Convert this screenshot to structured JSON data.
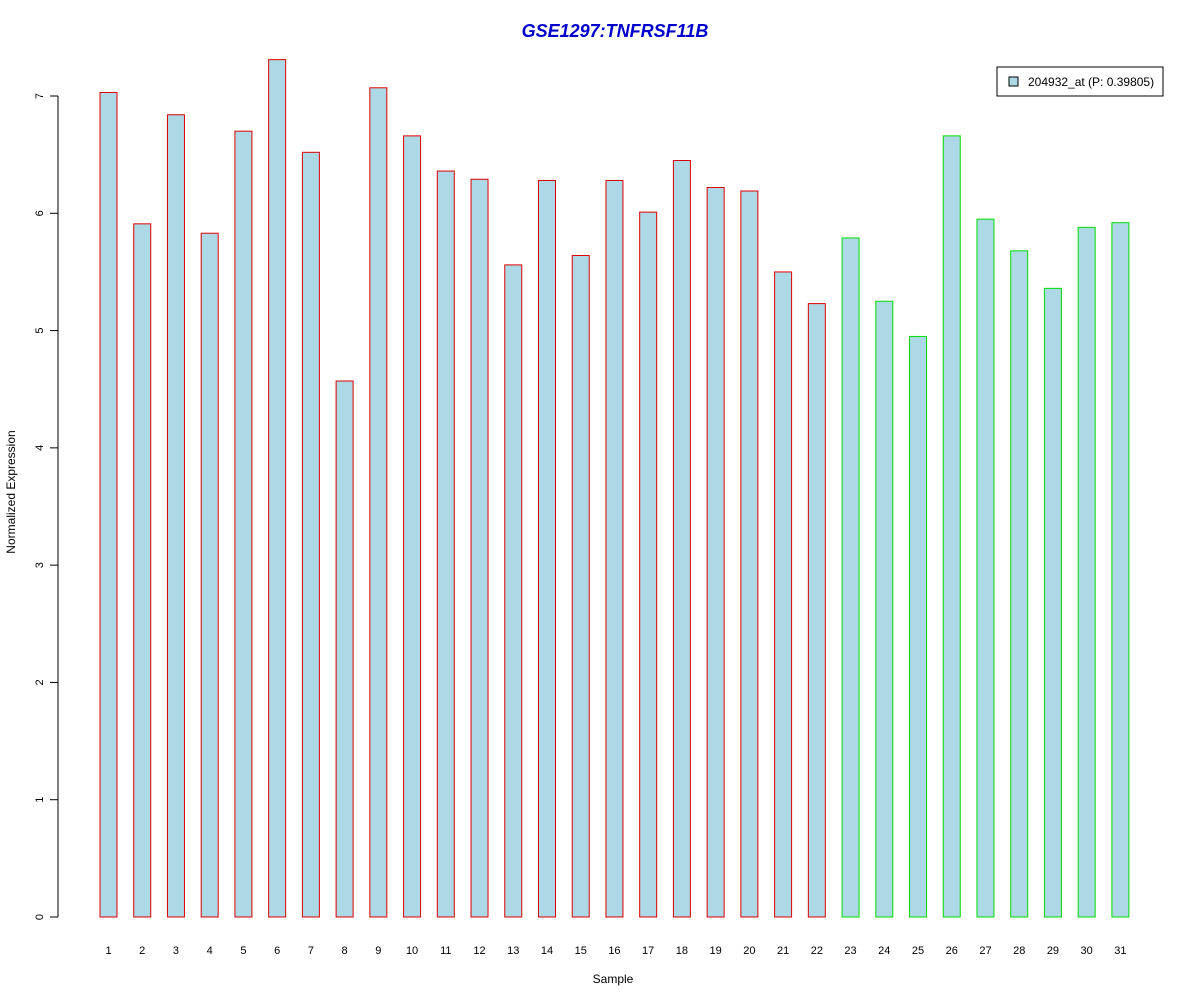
{
  "chart_data": {
    "type": "bar",
    "title": "GSE1297:TNFRSF11B",
    "xlabel": "Sample",
    "ylabel": "Normalized Expression",
    "ylim": [
      0,
      7.3
    ],
    "yticks": [
      "0",
      "1",
      "2",
      "3",
      "4",
      "5",
      "6",
      "7"
    ],
    "grid": false,
    "legend": {
      "position": "top-right",
      "label": "204932_at (P: 0.39805)"
    },
    "categories": [
      "1",
      "2",
      "3",
      "4",
      "5",
      "6",
      "7",
      "8",
      "9",
      "10",
      "11",
      "12",
      "13",
      "14",
      "15",
      "16",
      "17",
      "18",
      "19",
      "20",
      "21",
      "22",
      "23",
      "24",
      "25",
      "26",
      "27",
      "28",
      "29",
      "30",
      "31"
    ],
    "values": [
      7.03,
      5.91,
      6.84,
      5.83,
      6.7,
      7.31,
      6.52,
      4.57,
      7.07,
      6.66,
      6.36,
      6.29,
      5.56,
      6.28,
      5.64,
      6.28,
      6.01,
      6.45,
      6.22,
      6.19,
      5.5,
      5.23,
      5.79,
      5.25,
      4.95,
      6.66,
      5.95,
      5.68,
      5.36,
      5.88,
      5.92
    ],
    "groups": [
      "red",
      "red",
      "red",
      "red",
      "red",
      "red",
      "red",
      "red",
      "red",
      "red",
      "red",
      "red",
      "red",
      "red",
      "red",
      "red",
      "red",
      "red",
      "red",
      "red",
      "red",
      "red",
      "green",
      "green",
      "green",
      "green",
      "green",
      "green",
      "green",
      "green",
      "green"
    ]
  },
  "colors": {
    "title": "#0000CC",
    "bar_fill": "#ADD8E6",
    "group_red": "#DD0000",
    "group_green": "#00DD00",
    "axis": "#000000"
  }
}
